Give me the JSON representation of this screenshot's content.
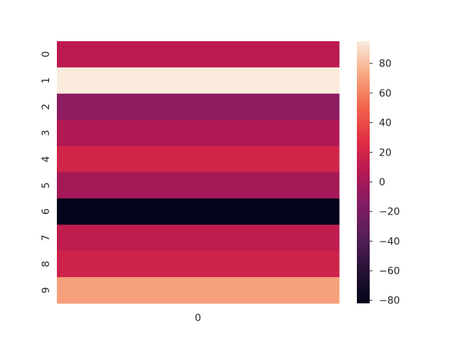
{
  "chart_data": {
    "type": "heatmap",
    "title": "",
    "xlabel": "",
    "ylabel": "",
    "x_tick_labels": [
      "0"
    ],
    "y_tick_labels": [
      "0",
      "1",
      "2",
      "3",
      "4",
      "5",
      "6",
      "7",
      "8",
      "9"
    ],
    "values": [
      [
        10
      ],
      [
        95
      ],
      [
        -10
      ],
      [
        5
      ],
      [
        20
      ],
      [
        0
      ],
      [
        -82
      ],
      [
        12
      ],
      [
        18
      ],
      [
        70
      ]
    ],
    "colorbar": {
      "min": -82,
      "max": 95,
      "ticks": [
        -80,
        -60,
        -40,
        -20,
        0,
        20,
        40,
        60,
        80
      ],
      "tick_labels": [
        "−80",
        "−60",
        "−40",
        "−20",
        "0",
        "20",
        "40",
        "60",
        "80"
      ],
      "colormap": "rocket"
    },
    "grid": false,
    "legend": "colorbar-right"
  }
}
